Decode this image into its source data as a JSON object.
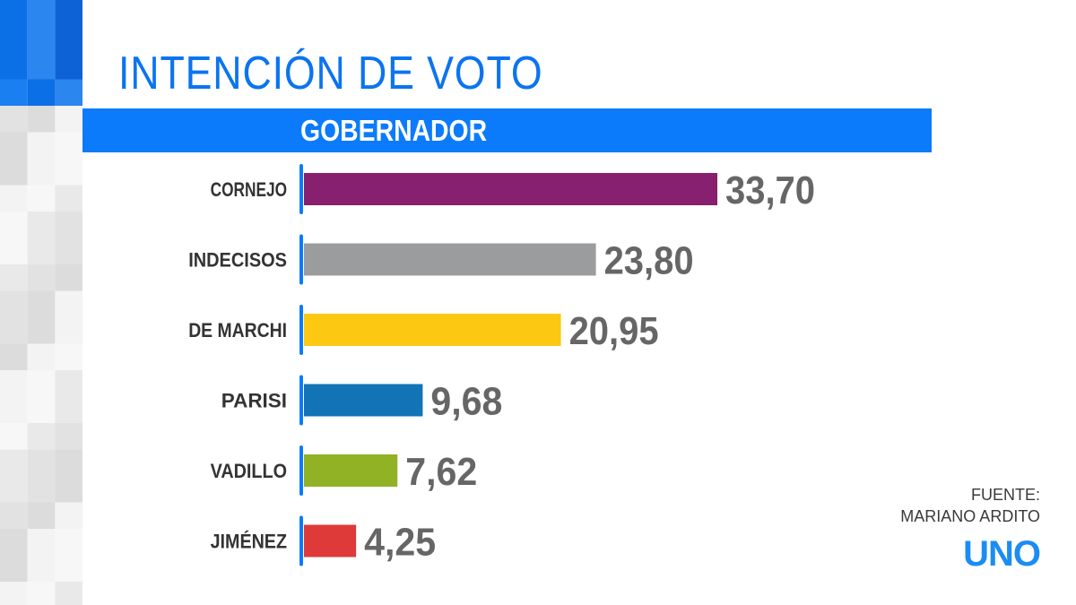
{
  "title": "INTENCIÓN DE VOTO",
  "band_label": "GOBERNADOR",
  "source": {
    "line1": "FUENTE:",
    "line2": "MARIANO ARDITO"
  },
  "logo": "UNO",
  "colors": {
    "accent": "#0b7bfb",
    "value_text": "#666666",
    "label_text": "#333333"
  },
  "chart_data": {
    "type": "bar",
    "orientation": "horizontal",
    "title": "INTENCIÓN DE VOTO",
    "subtitle": "GOBERNADOR",
    "categories": [
      "CORNEJO",
      "INDECISOS",
      "DE MARCHI",
      "PARISI",
      "VADILLO",
      "JIMÉNEZ"
    ],
    "values": [
      33.7,
      23.8,
      20.95,
      9.68,
      7.62,
      4.25
    ],
    "value_labels": [
      "33,70",
      "23,80",
      "20,95",
      "9,68",
      "7,62",
      "4,25"
    ],
    "colors": [
      "#86206f",
      "#9b9c9e",
      "#fdc811",
      "#1273b6",
      "#90b224",
      "#dd3a39"
    ],
    "xlim": [
      0,
      33.7
    ],
    "grid": false,
    "legend": "none"
  }
}
